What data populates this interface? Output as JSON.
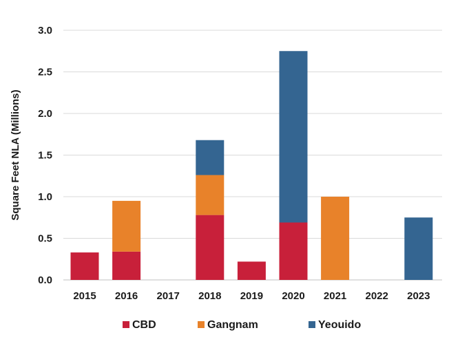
{
  "chart_data": {
    "type": "bar",
    "stacked": true,
    "categories": [
      "2015",
      "2016",
      "2017",
      "2018",
      "2019",
      "2020",
      "2021",
      "2022",
      "2023"
    ],
    "series": [
      {
        "name": "CBD",
        "color": "#c8203a",
        "values": [
          0.33,
          0.34,
          0,
          0.78,
          0.22,
          0.69,
          0,
          0,
          0
        ]
      },
      {
        "name": "Gangnam",
        "color": "#e8822a",
        "values": [
          0,
          0.61,
          0,
          0.48,
          0,
          0,
          1.0,
          0,
          0
        ]
      },
      {
        "name": "Yeouido",
        "color": "#346591",
        "values": [
          0,
          0,
          0,
          0.42,
          0,
          2.06,
          0,
          0,
          0.75
        ]
      }
    ],
    "xlabel": "",
    "ylabel": "Square Feet NLA (Millions)",
    "ylim": [
      0,
      3.0
    ],
    "yticks": [
      "0.0",
      "0.5",
      "1.0",
      "1.5",
      "2.0",
      "2.5",
      "3.0"
    ],
    "grid": true,
    "legend": "bottom"
  }
}
